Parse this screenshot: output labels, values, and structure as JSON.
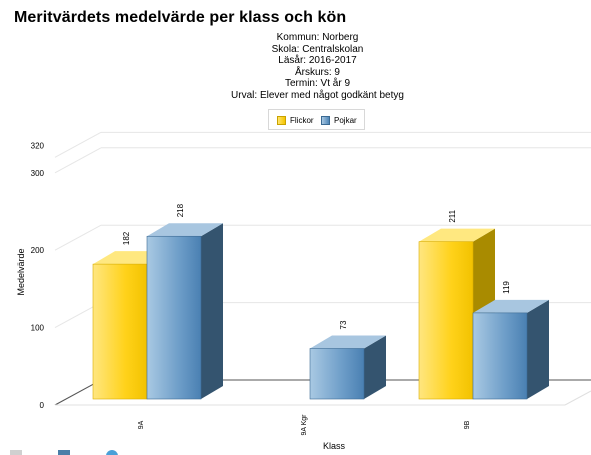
{
  "chart_data": {
    "type": "bar",
    "title": "Meritvärdets medelvärde per klass och kön",
    "subtitle": [
      "Kommun: Norberg",
      "Skola: Centralskolan",
      "Läsår: 2016-2017",
      "Årskurs: 9",
      "Termin: Vt år 9",
      "Urval: Elever med något godkänt betyg"
    ],
    "xlabel": "Klass",
    "ylabel": "Medelvärde",
    "categories": [
      "9A",
      "9A Kgr",
      "9B"
    ],
    "series": [
      {
        "name": "Flickor",
        "values": [
          182,
          null,
          211
        ],
        "color": "#f5c800"
      },
      {
        "name": "Pojkar",
        "values": [
          218,
          73,
          119
        ],
        "color": "#5b8fbb"
      }
    ],
    "yticks": [
      0,
      100,
      200,
      300,
      320
    ],
    "ylim": [
      0,
      320
    ],
    "grid": true,
    "legend_position": "top-center",
    "three_d": true
  }
}
